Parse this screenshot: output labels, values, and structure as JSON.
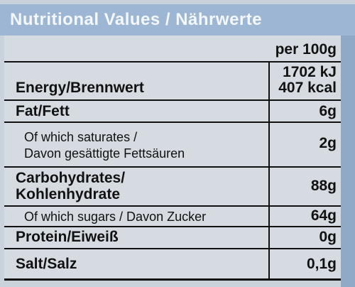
{
  "header": {
    "title": "Nutritional Values / Nährwerte"
  },
  "table": {
    "column_header": "per 100g",
    "rows": [
      {
        "label": [
          "Energy/Brennwert"
        ],
        "values": [
          "1702 kJ",
          "407 kcal"
        ]
      },
      {
        "label": [
          "Fat/Fett"
        ],
        "values": [
          "6g"
        ]
      },
      {
        "label": [
          "Of which saturates /",
          "Davon gesättigte Fettsäuren"
        ],
        "values": [
          "2g"
        ]
      },
      {
        "label": [
          "Carbohydrates/",
          "Kohlenhydrate"
        ],
        "values": [
          "88g"
        ]
      },
      {
        "label": [
          "Of which sugars / Davon Zucker"
        ],
        "values": [
          "64g"
        ]
      },
      {
        "label": [
          "Protein/Eiweiß"
        ],
        "values": [
          "0g"
        ]
      },
      {
        "label": [
          "Salt/Salz"
        ],
        "values": [
          "0,1g"
        ]
      }
    ]
  }
}
